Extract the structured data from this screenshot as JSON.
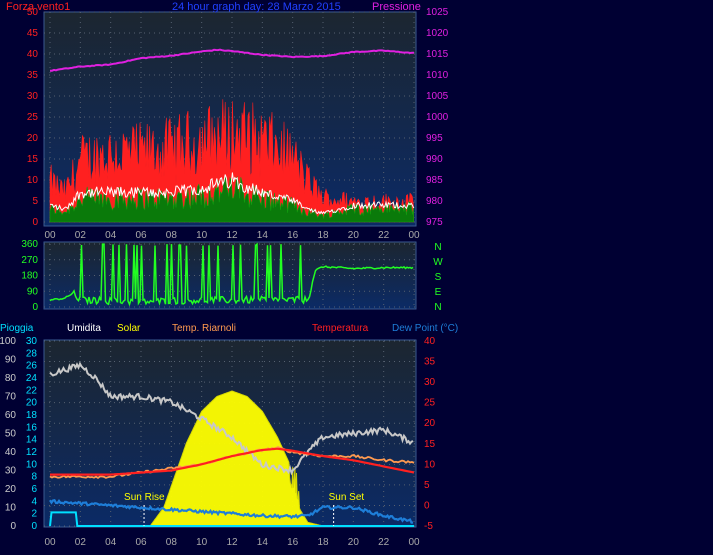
{
  "colors": {
    "background": "#000033",
    "panel_bottom": "#0b2a66",
    "panel_top": "#1c2630",
    "wind_avg": "#ff2020",
    "wind_gust_band": "#0a7a0a",
    "wind_white": "#ffffff",
    "pressure": "#e020e0",
    "direction": "#22ff22",
    "humidity": "#c8c8c8",
    "solar": "#ffff00",
    "wind_chill": "#ff9a50",
    "temperature": "#ff2020",
    "dewpoint": "#1e7ed8",
    "rain": "#00e0ff"
  },
  "chart_data": [
    {
      "type": "line",
      "name": "wind-pressure",
      "title": "24 hour graph day: 28 Marzo 2015",
      "left_label": "Forza vento1",
      "right_label": "Pressione",
      "x_ticks": [
        "00",
        "02",
        "04",
        "06",
        "08",
        "10",
        "12",
        "14",
        "16",
        "18",
        "20",
        "22",
        "00"
      ],
      "y_left_ticks": [
        "0",
        "5",
        "10",
        "15",
        "20",
        "25",
        "30",
        "35",
        "40",
        "45",
        "50"
      ],
      "y_left_range": [
        0,
        50
      ],
      "y_right_ticks": [
        "975",
        "980",
        "985",
        "990",
        "995",
        "1000",
        "1005",
        "1010",
        "1015",
        "1020",
        "1025"
      ],
      "y_right_range": [
        975,
        1025
      ],
      "series": [
        {
          "key": "pressure",
          "hours": [
            0,
            2,
            4,
            6,
            8,
            10,
            11,
            12,
            14,
            16,
            18,
            20,
            22,
            24
          ],
          "values": [
            1011,
            1012,
            1012.5,
            1014,
            1014.6,
            1015.6,
            1016,
            1015.7,
            1014.8,
            1014.3,
            1014.5,
            1015.5,
            1015.8,
            1015.2
          ]
        },
        {
          "key": "wind_avg",
          "hours": [
            0,
            1,
            2,
            4,
            6,
            8,
            10,
            12,
            14,
            16,
            17,
            18,
            20,
            24
          ],
          "values": [
            10,
            7,
            15,
            17,
            17,
            18,
            20,
            22,
            20,
            16,
            10,
            6,
            5,
            5
          ]
        },
        {
          "key": "wind_white",
          "hours": [
            0,
            1,
            2,
            4,
            6,
            8,
            10,
            12,
            14,
            16,
            17,
            18,
            20,
            24
          ],
          "values": [
            4,
            3,
            7,
            7,
            7,
            7,
            8,
            10,
            7,
            5,
            3,
            2,
            4,
            4
          ]
        }
      ]
    },
    {
      "type": "line",
      "name": "wind-direction",
      "x_ticks": [
        "00",
        "02",
        "04",
        "06",
        "08",
        "10",
        "12",
        "14",
        "16",
        "18",
        "20",
        "22",
        "00"
      ],
      "y_ticks": [
        "0",
        "90",
        "180",
        "270",
        "360"
      ],
      "y_range": [
        0,
        360
      ],
      "compass": [
        "N",
        "W",
        "S",
        "E",
        "N"
      ],
      "series": [
        {
          "key": "direction",
          "hours": [
            0,
            1,
            1.5,
            2,
            6,
            10,
            14,
            17,
            17.5,
            18,
            20,
            22,
            24
          ],
          "values": [
            40,
            50,
            80,
            40,
            30,
            40,
            40,
            40,
            210,
            230,
            220,
            225,
            225
          ]
        }
      ]
    },
    {
      "type": "line",
      "name": "weather-bottom",
      "legend": [
        "Pioggia",
        "Umidita",
        "Solar",
        "Temp. Riarnoli",
        "Temperatura",
        "Dew Point (°C)"
      ],
      "x_ticks": [
        "00",
        "02",
        "04",
        "06",
        "08",
        "10",
        "12",
        "14",
        "16",
        "18",
        "20",
        "22",
        "00"
      ],
      "y_rain_ticks": [
        "0",
        "2",
        "4",
        "6",
        "8",
        "10",
        "12",
        "14",
        "16",
        "18",
        "20",
        "22",
        "24",
        "26",
        "28",
        "30"
      ],
      "y_humidity_ticks": [
        "0",
        "10",
        "20",
        "30",
        "40",
        "50",
        "60",
        "70",
        "80",
        "90",
        "100"
      ],
      "y_temp_ticks": [
        "-5",
        "0",
        "5",
        "10",
        "15",
        "20",
        "25",
        "30",
        "35",
        "40"
      ],
      "y_temp_range": [
        -5,
        40
      ],
      "annotations": [
        "Sun Rise",
        "Sun Set"
      ],
      "sunrise_hour": 6.2,
      "sunset_hour": 18.7,
      "series": [
        {
          "key": "humidity",
          "hours": [
            0,
            2,
            3,
            4,
            6,
            8,
            10,
            12,
            14,
            16,
            17,
            18,
            20,
            22,
            24
          ],
          "values": [
            82,
            87,
            80,
            70,
            70,
            67,
            58,
            48,
            33,
            30,
            40,
            48,
            50,
            52,
            45
          ]
        },
        {
          "key": "temperature",
          "hours": [
            0,
            2,
            4,
            6,
            8,
            10,
            12,
            14,
            15,
            16,
            18,
            20,
            22,
            24
          ],
          "values": [
            7.5,
            7.5,
            7.5,
            8,
            8.5,
            10,
            12,
            13.5,
            13.8,
            13.3,
            12,
            11,
            9.5,
            8
          ]
        },
        {
          "key": "wind_chill",
          "hours": [
            0,
            2,
            4,
            6,
            8,
            10,
            12,
            14,
            15,
            16,
            18,
            20,
            22,
            24
          ],
          "values": [
            7,
            7,
            7,
            8,
            9,
            10,
            12,
            13.5,
            14,
            13,
            12,
            12,
            11,
            10.5
          ]
        },
        {
          "key": "dewpoint",
          "hours": [
            0,
            2,
            4,
            6,
            8,
            10,
            12,
            14,
            16,
            17,
            18,
            20,
            22,
            24
          ],
          "values": [
            1,
            0.5,
            0,
            -0.5,
            -1,
            -1.5,
            -2,
            -2.5,
            -2.7,
            -2.5,
            -0.5,
            -0.5,
            -2.5,
            -4
          ]
        },
        {
          "key": "solar",
          "hours": [
            6.6,
            7.5,
            9,
            10,
            11,
            12,
            13,
            14,
            15,
            16,
            16.4,
            17,
            18
          ],
          "values": [
            0,
            10,
            45,
            62,
            70,
            73,
            70,
            62,
            48,
            30,
            10,
            2,
            0
          ]
        },
        {
          "key": "rain",
          "hours": [
            0,
            0.1,
            1.7,
            1.8,
            24
          ],
          "values": [
            0,
            2.2,
            2.2,
            0,
            0
          ]
        }
      ]
    }
  ]
}
